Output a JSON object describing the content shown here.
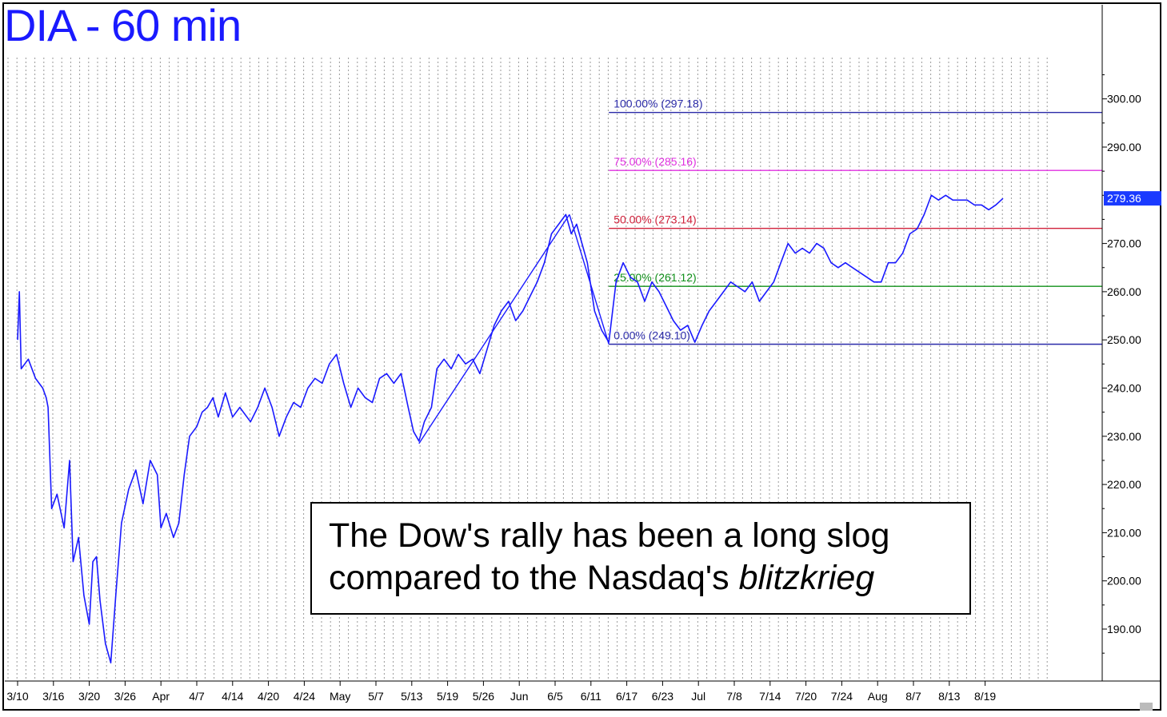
{
  "chart_title": "DIA - 60 min",
  "annotation": {
    "line1": "The Dow's rally has been a long slog",
    "line2_prefix": "compared to the Nasdaq's ",
    "line2_emph": "blitzkrieg"
  },
  "colors": {
    "price": "#1a1aff",
    "fib_100": "#2a2aa8",
    "fib_75": "#e030e0",
    "fib_50": "#d0203a",
    "fib_25": "#10901a",
    "fib_0": "#2a2aa8",
    "last_price_bg": "#1a3aff"
  },
  "chart_data": {
    "type": "line",
    "title": "DIA - 60 min",
    "ylim": [
      182,
      308
    ],
    "y_ticks": [
      "190.00",
      "200.00",
      "210.00",
      "220.00",
      "230.00",
      "240.00",
      "250.00",
      "260.00",
      "270.00",
      "280.00",
      "290.00",
      "300.00"
    ],
    "x_ticks": [
      "3/10",
      "3/16",
      "3/20",
      "3/26",
      "Apr",
      "4/7",
      "4/14",
      "4/20",
      "4/24",
      "May",
      "5/7",
      "5/13",
      "5/19",
      "5/26",
      "Jun",
      "6/5",
      "6/11",
      "6/17",
      "6/23",
      "Jul",
      "7/8",
      "7/14",
      "7/20",
      "7/24",
      "Aug",
      "8/7",
      "8/13",
      "8/19"
    ],
    "last_price": "279.36",
    "fib_levels": [
      {
        "label": "100.00% (297.18)",
        "value": 297.18,
        "color_key": "fib_100"
      },
      {
        "label": "75.00% (285.16)",
        "value": 285.16,
        "color_key": "fib_75"
      },
      {
        "label": "50.00% (273.14)",
        "value": 273.14,
        "color_key": "fib_50"
      },
      {
        "label": "25.00% (261.12)",
        "value": 261.12,
        "color_key": "fib_25"
      },
      {
        "label": "0.00% (249.10)",
        "value": 249.1,
        "color_key": "fib_0"
      }
    ],
    "fib_start_tick": 16.5,
    "trend_lines": [
      {
        "from": [
          11.2,
          228.5
        ],
        "to": [
          15.4,
          276
        ]
      },
      {
        "from": [
          15.4,
          276
        ],
        "to": [
          16.5,
          249.1
        ]
      }
    ],
    "series": [
      {
        "values": [
          [
            0.0,
            250
          ],
          [
            0.05,
            260
          ],
          [
            0.1,
            244
          ],
          [
            0.3,
            246
          ],
          [
            0.5,
            242
          ],
          [
            0.7,
            240
          ],
          [
            0.8,
            238
          ],
          [
            0.85,
            236
          ],
          [
            0.95,
            215
          ],
          [
            1.1,
            218
          ],
          [
            1.3,
            211
          ],
          [
            1.45,
            225
          ],
          [
            1.55,
            204
          ],
          [
            1.7,
            209
          ],
          [
            1.85,
            197
          ],
          [
            2.0,
            191
          ],
          [
            2.1,
            204
          ],
          [
            2.2,
            205
          ],
          [
            2.3,
            196
          ],
          [
            2.45,
            187
          ],
          [
            2.6,
            183
          ],
          [
            2.75,
            198
          ],
          [
            2.9,
            212
          ],
          [
            3.1,
            219
          ],
          [
            3.3,
            223
          ],
          [
            3.5,
            216
          ],
          [
            3.7,
            225
          ],
          [
            3.9,
            222
          ],
          [
            4.0,
            211
          ],
          [
            4.15,
            214
          ],
          [
            4.35,
            209
          ],
          [
            4.5,
            212
          ],
          [
            4.65,
            222
          ],
          [
            4.8,
            230
          ],
          [
            5.0,
            232
          ],
          [
            5.15,
            235
          ],
          [
            5.3,
            236
          ],
          [
            5.45,
            238
          ],
          [
            5.6,
            234
          ],
          [
            5.8,
            239
          ],
          [
            6.0,
            234
          ],
          [
            6.2,
            236
          ],
          [
            6.5,
            233
          ],
          [
            6.7,
            236
          ],
          [
            6.9,
            240
          ],
          [
            7.1,
            236
          ],
          [
            7.3,
            230
          ],
          [
            7.5,
            234
          ],
          [
            7.7,
            237
          ],
          [
            7.9,
            236
          ],
          [
            8.1,
            240
          ],
          [
            8.3,
            242
          ],
          [
            8.5,
            241
          ],
          [
            8.7,
            245
          ],
          [
            8.9,
            247
          ],
          [
            9.1,
            241
          ],
          [
            9.3,
            236
          ],
          [
            9.5,
            240
          ],
          [
            9.7,
            238
          ],
          [
            9.9,
            237
          ],
          [
            10.1,
            242
          ],
          [
            10.3,
            243
          ],
          [
            10.5,
            241
          ],
          [
            10.7,
            243
          ],
          [
            10.9,
            236
          ],
          [
            11.05,
            231
          ],
          [
            11.2,
            229
          ],
          [
            11.35,
            233
          ],
          [
            11.55,
            236
          ],
          [
            11.7,
            244
          ],
          [
            11.9,
            246
          ],
          [
            12.1,
            244
          ],
          [
            12.3,
            247
          ],
          [
            12.5,
            245
          ],
          [
            12.7,
            246
          ],
          [
            12.9,
            243
          ],
          [
            13.1,
            248
          ],
          [
            13.3,
            253
          ],
          [
            13.5,
            256
          ],
          [
            13.7,
            258
          ],
          [
            13.9,
            254
          ],
          [
            14.1,
            256
          ],
          [
            14.3,
            259
          ],
          [
            14.5,
            262
          ],
          [
            14.7,
            266
          ],
          [
            14.9,
            272
          ],
          [
            15.1,
            274
          ],
          [
            15.3,
            276
          ],
          [
            15.45,
            272
          ],
          [
            15.6,
            274
          ],
          [
            15.75,
            270
          ],
          [
            15.9,
            266
          ],
          [
            16.1,
            256
          ],
          [
            16.3,
            252
          ],
          [
            16.5,
            249.5
          ],
          [
            16.7,
            262
          ],
          [
            16.9,
            266
          ],
          [
            17.1,
            263
          ],
          [
            17.3,
            262
          ],
          [
            17.5,
            258
          ],
          [
            17.7,
            262
          ],
          [
            17.9,
            260
          ],
          [
            18.1,
            257
          ],
          [
            18.3,
            254
          ],
          [
            18.5,
            252
          ],
          [
            18.7,
            253
          ],
          [
            18.9,
            249.5
          ],
          [
            19.1,
            253
          ],
          [
            19.3,
            256
          ],
          [
            19.5,
            258
          ],
          [
            19.7,
            260
          ],
          [
            19.9,
            262
          ],
          [
            20.1,
            261
          ],
          [
            20.3,
            260
          ],
          [
            20.5,
            262
          ],
          [
            20.7,
            258
          ],
          [
            20.9,
            260
          ],
          [
            21.1,
            262
          ],
          [
            21.3,
            266
          ],
          [
            21.5,
            270
          ],
          [
            21.7,
            268
          ],
          [
            21.9,
            269
          ],
          [
            22.1,
            268
          ],
          [
            22.3,
            270
          ],
          [
            22.5,
            269
          ],
          [
            22.7,
            266
          ],
          [
            22.9,
            265
          ],
          [
            23.1,
            266
          ],
          [
            23.3,
            265
          ],
          [
            23.5,
            264
          ],
          [
            23.7,
            263
          ],
          [
            23.9,
            262
          ],
          [
            24.1,
            262
          ],
          [
            24.3,
            266
          ],
          [
            24.5,
            266
          ],
          [
            24.7,
            268
          ],
          [
            24.9,
            272
          ],
          [
            25.1,
            273
          ],
          [
            25.3,
            276
          ],
          [
            25.5,
            280
          ],
          [
            25.7,
            279
          ],
          [
            25.9,
            280
          ],
          [
            26.1,
            279
          ],
          [
            26.3,
            279
          ],
          [
            26.5,
            279
          ],
          [
            26.7,
            278
          ],
          [
            26.9,
            278
          ],
          [
            27.1,
            277
          ],
          [
            27.3,
            278
          ],
          [
            27.5,
            279.36
          ]
        ]
      }
    ]
  }
}
